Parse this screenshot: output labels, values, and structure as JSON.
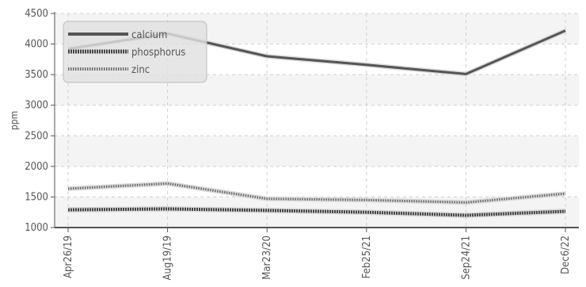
{
  "chart_data": {
    "type": "line",
    "title": "",
    "xlabel": "",
    "ylabel": "ppm",
    "categories": [
      "Apr26/19",
      "Aug19/19",
      "Mar23/20",
      "Feb25/21",
      "Sep24/21",
      "Dec6/22"
    ],
    "ylim": [
      1000,
      4500
    ],
    "yticks": [
      1000,
      1500,
      2000,
      2500,
      3000,
      3500,
      4000,
      4500
    ],
    "grid": true,
    "legend_position": "top-left",
    "series": [
      {
        "name": "calcium",
        "values": [
          3920,
          4170,
          3800,
          3660,
          3510,
          4220
        ],
        "color": "#555555",
        "style": "solid"
      },
      {
        "name": "phosphorus",
        "values": [
          1290,
          1305,
          1280,
          1250,
          1200,
          1265
        ],
        "color": "#444444",
        "style": "dashed"
      },
      {
        "name": "zinc",
        "values": [
          1635,
          1720,
          1470,
          1450,
          1410,
          1555
        ],
        "color": "#666666",
        "style": "dotted"
      }
    ]
  }
}
